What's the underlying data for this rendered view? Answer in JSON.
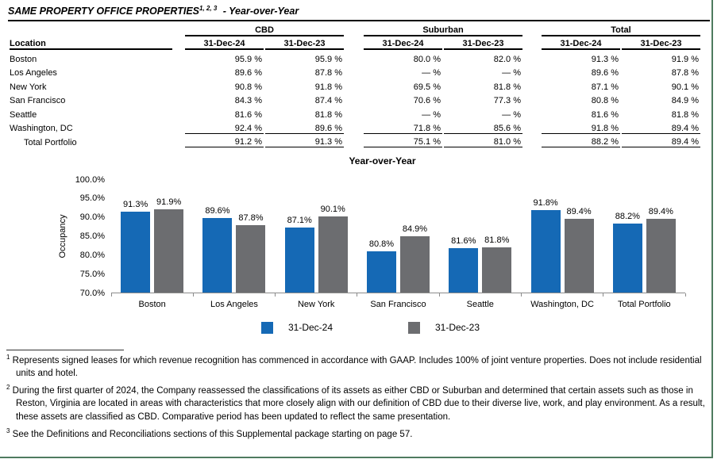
{
  "page": {
    "title": "SAME PROPERTY OFFICE PROPERTIES",
    "title_superscript": "1, 2, 3",
    "title_suffix": "- Year-over-Year"
  },
  "table": {
    "location_header": "Location",
    "groups": [
      {
        "label": "CBD",
        "columns": [
          "31-Dec-24",
          "31-Dec-23"
        ]
      },
      {
        "label": "Suburban",
        "columns": [
          "31-Dec-24",
          "31-Dec-23"
        ]
      },
      {
        "label": "Total",
        "columns": [
          "31-Dec-24",
          "31-Dec-23"
        ]
      }
    ],
    "rows": [
      {
        "location": "Boston",
        "is_total": false,
        "values": [
          "95.9 %",
          "95.9 %",
          "80.0 %",
          "82.0 %",
          "91.3 %",
          "91.9 %"
        ]
      },
      {
        "location": "Los Angeles",
        "is_total": false,
        "values": [
          "89.6 %",
          "87.8 %",
          "— %",
          "— %",
          "89.6 %",
          "87.8 %"
        ]
      },
      {
        "location": "New York",
        "is_total": false,
        "values": [
          "90.8 %",
          "91.8 %",
          "69.5 %",
          "81.8 %",
          "87.1 %",
          "90.1 %"
        ]
      },
      {
        "location": "San Francisco",
        "is_total": false,
        "values": [
          "84.3 %",
          "87.4 %",
          "70.6 %",
          "77.3 %",
          "80.8 %",
          "84.9 %"
        ]
      },
      {
        "location": "Seattle",
        "is_total": false,
        "values": [
          "81.6 %",
          "81.8 %",
          "— %",
          "— %",
          "81.6 %",
          "81.8 %"
        ]
      },
      {
        "location": "Washington, DC",
        "is_total": false,
        "values": [
          "92.4 %",
          "89.6 %",
          "71.8 %",
          "85.6 %",
          "91.8 %",
          "89.4 %"
        ]
      },
      {
        "location": "Total Portfolio",
        "is_total": true,
        "values": [
          "91.2 %",
          "91.3 %",
          "75.1 %",
          "81.0 %",
          "88.2 %",
          "89.4 %"
        ]
      }
    ]
  },
  "chart_data": {
    "type": "bar",
    "title": "Year-over-Year",
    "xlabel": "",
    "ylabel": "Occupancy",
    "ylim": [
      70,
      100
    ],
    "ytick_step": 5,
    "grid": false,
    "legend_position": "bottom",
    "categories": [
      "Boston",
      "Los Angeles",
      "New York",
      "San Francisco",
      "Seattle",
      "Washington, DC",
      "Total Portfolio"
    ],
    "series": [
      {
        "name": "31-Dec-24",
        "color": "#1569B5",
        "values": [
          91.3,
          89.6,
          87.1,
          80.8,
          81.6,
          91.8,
          88.2
        ]
      },
      {
        "name": "31-Dec-23",
        "color": "#6C6D70",
        "values": [
          91.9,
          87.8,
          90.1,
          84.9,
          81.8,
          89.4,
          89.4
        ]
      }
    ]
  },
  "footnotes": [
    {
      "marker": "1",
      "text": "Represents signed leases for which revenue recognition has commenced in accordance with GAAP.  Includes 100% of joint venture properties. Does not include residential units and hotel."
    },
    {
      "marker": "2",
      "text": "During the first quarter of 2024, the Company reassessed the classifications of its assets as either CBD or Suburban and determined that certain assets such as those in Reston, Virginia are located in areas with characteristics that more closely align with our definition of CBD due to their diverse live, work, and play environment.  As a result, these assets are classified as CBD.  Comparative period has been updated to reflect the same presentation."
    },
    {
      "marker": "3",
      "text": "See the Definitions and Reconciliations sections of this Supplemental package starting on page 57."
    }
  ],
  "colors": {
    "accent_blue": "#1569B5",
    "accent_gray": "#6C6D70",
    "page_border_green": "#4E7B5F"
  }
}
